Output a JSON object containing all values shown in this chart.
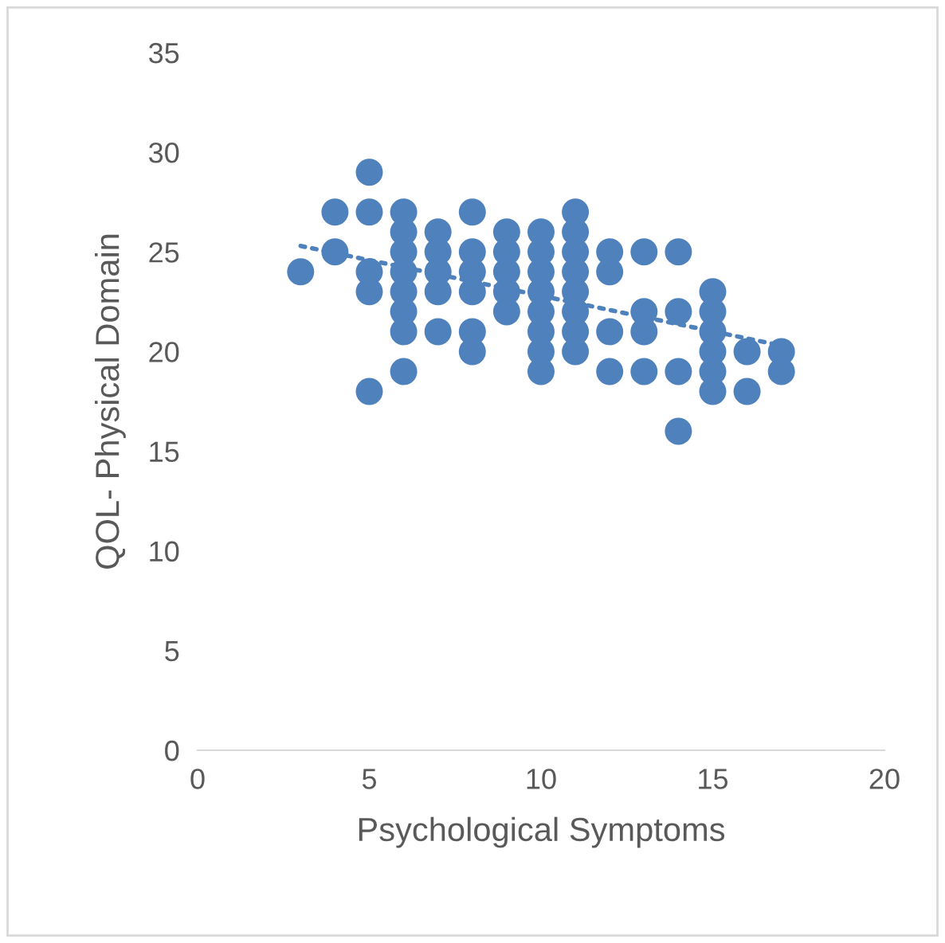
{
  "chart_data": {
    "type": "scatter",
    "xlabel": "Psychological Symptoms",
    "ylabel": "QOL- Physical Domain",
    "xlim": [
      0,
      20
    ],
    "xticks": [
      0,
      5,
      10,
      15,
      20
    ],
    "ylim": [
      0,
      35
    ],
    "yticks": [
      0,
      5,
      10,
      15,
      20,
      25,
      30,
      35
    ],
    "grid": false,
    "legend": false,
    "marker": "circle",
    "series": [
      {
        "color": "#4f81bd",
        "x": [
          3,
          4,
          4,
          5,
          5,
          5,
          5,
          5,
          6,
          6,
          6,
          6,
          6,
          6,
          6,
          6,
          7,
          7,
          7,
          7,
          7,
          8,
          8,
          8,
          8,
          8,
          8,
          9,
          9,
          9,
          9,
          9,
          10,
          10,
          10,
          10,
          10,
          10,
          10,
          10,
          11,
          11,
          11,
          11,
          11,
          11,
          11,
          11,
          12,
          12,
          12,
          12,
          13,
          13,
          13,
          13,
          14,
          14,
          14,
          14,
          15,
          15,
          15,
          15,
          15,
          15,
          16,
          16,
          17,
          17
        ],
        "values": [
          24,
          27,
          25,
          29,
          27,
          24,
          23,
          18,
          27,
          26,
          25,
          24,
          23,
          22,
          21,
          19,
          26,
          25,
          24,
          23,
          21,
          27,
          25,
          24,
          23,
          21,
          20,
          26,
          25,
          24,
          23,
          22,
          26,
          25,
          24,
          23,
          22,
          21,
          20,
          19,
          27,
          26,
          25,
          24,
          23,
          22,
          21,
          20,
          25,
          24,
          21,
          19,
          25,
          22,
          21,
          19,
          25,
          22,
          19,
          16,
          23,
          22,
          21,
          20,
          19,
          18,
          20,
          18,
          20,
          19
        ]
      },
      {
        "type": "line",
        "color": "#4f81bd",
        "line_style": "dotted",
        "marker": "none",
        "x": [
          3,
          17
        ],
        "values": [
          25.3,
          20.3
        ]
      }
    ]
  }
}
